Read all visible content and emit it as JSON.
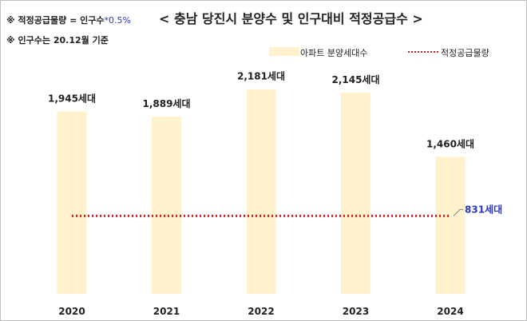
{
  "notes": {
    "formula_prefix": "※ 적정공급물량 = 인구수",
    "formula_factor": "*0.5%",
    "population_basis": "※ 인구수는 20.12월 기준"
  },
  "title": "< 충남 당진시 분양수 및 인구대비 적정공급수 >",
  "legend": {
    "bars": "아파트 분양세대수",
    "line": "적정공급물량"
  },
  "colors": {
    "bar": "#fff2cc",
    "line": "#e31a1c",
    "line_label": "#2b35c9",
    "background": "#ffffff"
  },
  "chart_data": {
    "type": "bar",
    "categories": [
      "2020",
      "2021",
      "2022",
      "2023",
      "2024"
    ],
    "series": [
      {
        "name": "아파트 분양세대수",
        "values": [
          1945,
          1889,
          2181,
          2145,
          1460
        ]
      }
    ],
    "bar_labels": [
      "1,945세대",
      "1,889세대",
      "2,181세대",
      "2,145세대",
      "1,460세대"
    ],
    "reference_line": {
      "name": "적정공급물량",
      "value": 831,
      "label": "831세대",
      "style": "dotted"
    },
    "ylim": [
      0,
      2400
    ],
    "grid": false,
    "legend_position": "top-right"
  }
}
